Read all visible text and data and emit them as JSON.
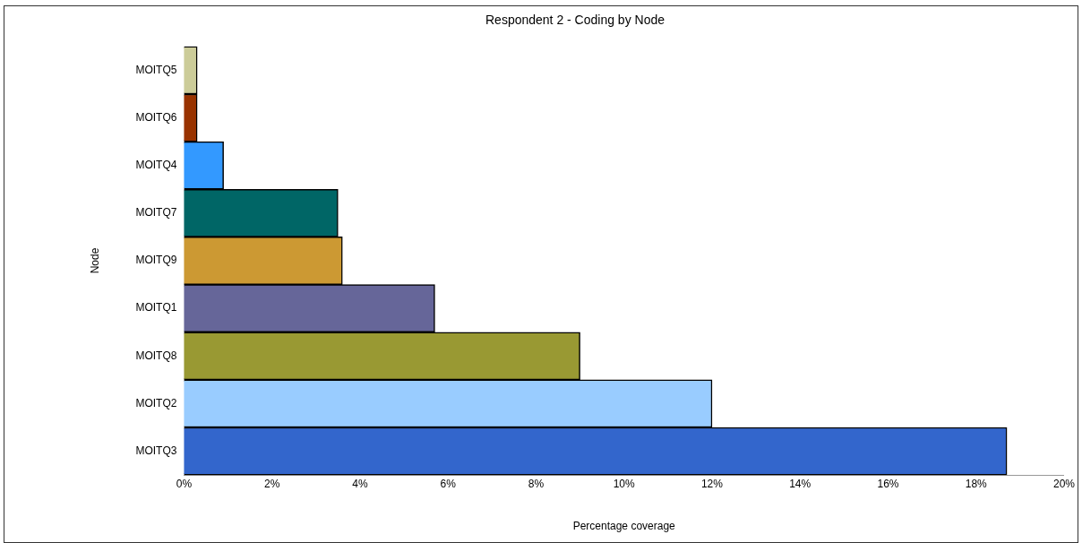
{
  "chart_data": {
    "type": "bar",
    "orientation": "horizontal",
    "title": "Respondent 2 - Coding by Node",
    "xlabel": "Percentage coverage",
    "ylabel": "Node",
    "categories": [
      "MOITQ5",
      "MOITQ6",
      "MOITQ4",
      "MOITQ7",
      "MOITQ9",
      "MOITQ1",
      "MOITQ8",
      "MOITQ2",
      "MOITQ3"
    ],
    "values": [
      0.3,
      0.3,
      0.9,
      3.5,
      3.6,
      5.7,
      9.0,
      12.0,
      18.7
    ],
    "colors": [
      "#cccc99",
      "#993300",
      "#3399ff",
      "#006666",
      "#cc9933",
      "#666699",
      "#999933",
      "#99ccff",
      "#3366cc"
    ],
    "xlim": [
      0,
      20
    ],
    "xticks": [
      {
        "value": 0,
        "label": "0%"
      },
      {
        "value": 2,
        "label": "2%"
      },
      {
        "value": 4,
        "label": "4%"
      },
      {
        "value": 6,
        "label": "6%"
      },
      {
        "value": 8,
        "label": "8%"
      },
      {
        "value": 10,
        "label": "10%"
      },
      {
        "value": 12,
        "label": "12%"
      },
      {
        "value": 14,
        "label": "14%"
      },
      {
        "value": 16,
        "label": "16%"
      },
      {
        "value": 18,
        "label": "18%"
      },
      {
        "value": 20,
        "label": "20%"
      }
    ],
    "grid": false,
    "legend": false
  }
}
